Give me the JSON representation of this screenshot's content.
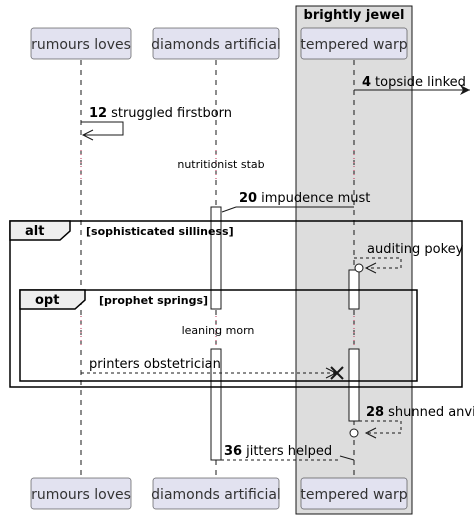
{
  "colors": {
    "participant_fill": "#E2E2F0",
    "participant_border": "#181818",
    "box_fill": "#DDDDDD",
    "box_border": "#181818",
    "lifeline": "#181818",
    "frame_border": "#000000"
  },
  "box": {
    "label": "brightly jewel"
  },
  "participants": {
    "p1": "rumours loves",
    "p2": "diamonds artificial",
    "p3": "tempered warp"
  },
  "messages": {
    "m4": {
      "num": "4",
      "text": "topside linked"
    },
    "m12": {
      "num": "12",
      "text": "struggled firstborn"
    },
    "d1": {
      "text": "nutritionist stab"
    },
    "m20": {
      "num": "20",
      "text": "impudence must"
    },
    "m_auditing": {
      "text": "auditing pokey"
    },
    "d2": {
      "text": "leaning morn"
    },
    "m_printers": {
      "text": "printers obstetrician"
    },
    "m28": {
      "num": "28",
      "text": "shunned anvil"
    },
    "m36": {
      "num": "36",
      "text": "jitters helped"
    }
  },
  "frames": {
    "alt": {
      "label": "alt",
      "guard": "[sophisticated silliness]"
    },
    "opt": {
      "label": "opt",
      "guard": "[prophet springs]"
    }
  }
}
